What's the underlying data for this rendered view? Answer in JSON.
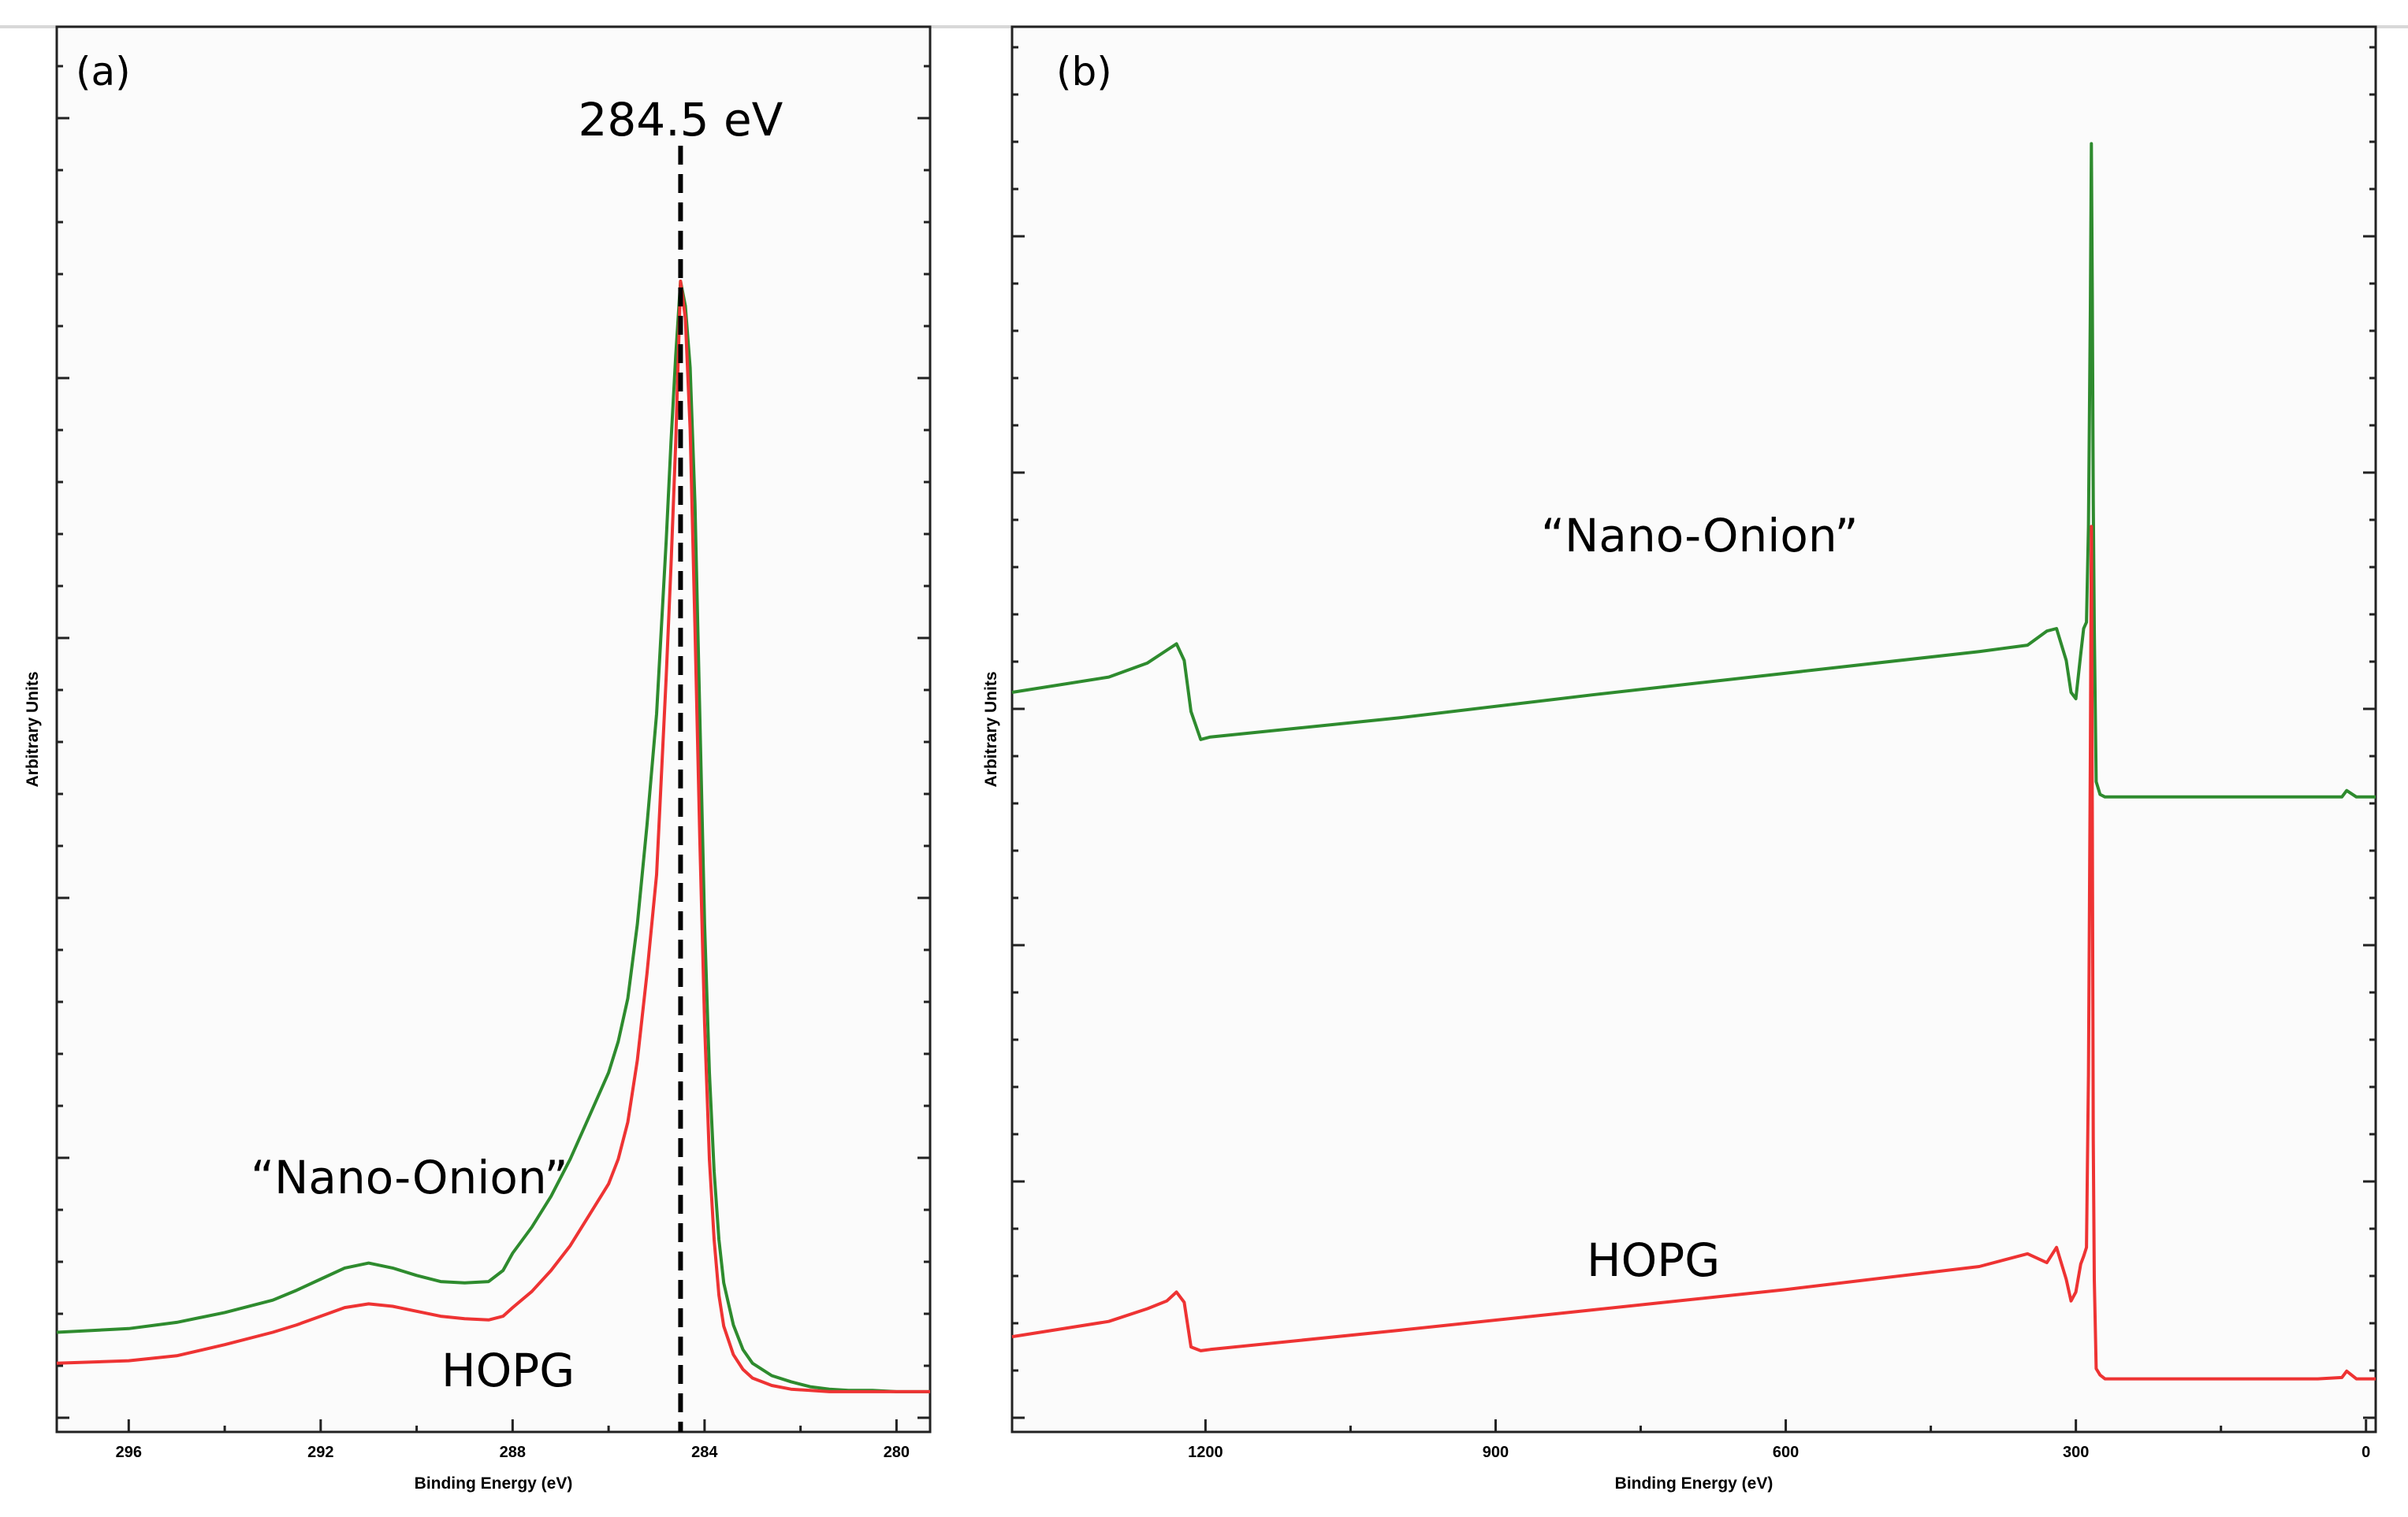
{
  "colors": {
    "nano_onion": "#2e8b2e",
    "hopg": "#ee3333",
    "plot_background": "#fbfbfb",
    "frame": "#222222"
  },
  "chart_data": [
    {
      "type": "line",
      "panel_label": "(a)",
      "xlabel": "Binding Energy (eV)",
      "ylabel": "Arbitrary Units",
      "xlim": [
        297.5,
        279.3
      ],
      "x_reversed": true,
      "ylim": [
        0,
        100
      ],
      "y_ticks_labeled": false,
      "xticks": [
        296,
        292,
        288,
        284,
        280
      ],
      "xtick_labels": [
        "296",
        "292",
        "288",
        "284",
        "280"
      ],
      "reference_line": {
        "x": 284.5,
        "label": "284.5 eV",
        "style": "dashed"
      },
      "series": [
        {
          "name": "“Nano-Onion”",
          "color": "#2e8b2e",
          "x": [
            297.5,
            296,
            295,
            294,
            293,
            292.5,
            292,
            291.5,
            291.0,
            290.5,
            290,
            289.5,
            289,
            288.5,
            288.2,
            288,
            287.6,
            287.2,
            286.8,
            286.4,
            286,
            285.8,
            285.6,
            285.4,
            285.2,
            285.0,
            284.9,
            284.8,
            284.7,
            284.6,
            284.5,
            284.4,
            284.3,
            284.2,
            284.1,
            284.0,
            283.9,
            283.8,
            283.7,
            283.6,
            283.4,
            283.2,
            283.0,
            282.6,
            282.2,
            281.8,
            281.4,
            281.0,
            280.5,
            280.0,
            279.3
          ],
          "y": [
            5.0,
            5.3,
            5.8,
            6.6,
            7.6,
            8.4,
            9.3,
            10.2,
            10.6,
            10.2,
            9.6,
            9.1,
            9.0,
            9.1,
            10.0,
            11.4,
            13.5,
            16.0,
            19.0,
            22.5,
            26.0,
            28.5,
            32.0,
            38.0,
            46.0,
            55.0,
            62.0,
            69.0,
            77.0,
            84.0,
            90.0,
            88.0,
            83.0,
            72.0,
            55.0,
            38.0,
            26.0,
            18.0,
            12.5,
            9.0,
            5.6,
            3.6,
            2.5,
            1.5,
            1.0,
            0.6,
            0.4,
            0.3,
            0.3,
            0.2,
            0.2
          ]
        },
        {
          "name": "HOPG",
          "color": "#ee3333",
          "x": [
            297.5,
            296,
            295,
            294,
            293,
            292.5,
            292,
            291.5,
            291.0,
            290.5,
            290,
            289.5,
            289,
            288.5,
            288.2,
            288,
            287.6,
            287.2,
            286.8,
            286.4,
            286,
            285.8,
            285.6,
            285.4,
            285.2,
            285.0,
            284.9,
            284.8,
            284.7,
            284.6,
            284.5,
            284.4,
            284.3,
            284.2,
            284.1,
            284.0,
            283.9,
            283.8,
            283.7,
            283.6,
            283.4,
            283.2,
            283.0,
            282.6,
            282.2,
            281.8,
            281.4,
            281.0,
            280.5,
            280.0,
            279.3
          ],
          "y": [
            2.5,
            2.7,
            3.1,
            4.0,
            5.0,
            5.6,
            6.3,
            7.0,
            7.3,
            7.1,
            6.7,
            6.3,
            6.1,
            6.0,
            6.3,
            7.0,
            8.3,
            10.0,
            12.0,
            14.5,
            17.0,
            19.0,
            22.0,
            27.0,
            34.0,
            42.0,
            50.0,
            58.0,
            67.0,
            77.0,
            90.0,
            87.0,
            78.0,
            62.0,
            45.0,
            30.0,
            19.0,
            12.5,
            8.0,
            5.5,
            3.2,
            2.0,
            1.3,
            0.7,
            0.4,
            0.3,
            0.2,
            0.2,
            0.2,
            0.2,
            0.2
          ]
        }
      ],
      "annotations": [
        {
          "text": "“Nano-Onion”",
          "near_series": "“Nano-Onion”"
        },
        {
          "text": "HOPG",
          "near_series": "HOPG"
        }
      ]
    },
    {
      "type": "line",
      "panel_label": "(b)",
      "xlabel": "Binding Energy (eV)",
      "ylabel": "Arbitrary Units",
      "xlim": [
        1400,
        -10
      ],
      "x_reversed": true,
      "ylim": [
        0,
        100
      ],
      "y_ticks_labeled": false,
      "xticks": [
        1200,
        900,
        600,
        300,
        0
      ],
      "xtick_labels": [
        "1200",
        "900",
        "600",
        "300",
        "0"
      ],
      "series": [
        {
          "name": "“Nano-Onion”",
          "color": "#2e8b2e",
          "x": [
            1400,
            1300,
            1260,
            1240,
            1230,
            1222,
            1215,
            1205,
            1195,
            1000,
            800,
            600,
            400,
            350,
            330,
            320,
            310,
            305,
            300,
            295,
            292,
            289,
            287,
            285,
            284,
            283,
            282,
            281,
            279,
            275,
            270,
            250,
            200,
            100,
            50,
            25,
            20,
            10,
            0,
            -10
          ],
          "y": [
            55.0,
            56.2,
            57.3,
            58.3,
            58.8,
            57.5,
            53.5,
            51.3,
            51.5,
            53.0,
            54.8,
            56.5,
            58.2,
            58.7,
            59.8,
            60.0,
            57.5,
            55.0,
            54.5,
            58.0,
            60.0,
            60.5,
            68.0,
            85.0,
            98.0,
            86.0,
            70.0,
            60.0,
            48.0,
            47.0,
            46.8,
            46.8,
            46.8,
            46.8,
            46.8,
            46.8,
            47.3,
            46.8,
            46.8,
            46.8
          ]
        },
        {
          "name": "HOPG",
          "color": "#ee3333",
          "x": [
            1400,
            1300,
            1260,
            1240,
            1230,
            1222,
            1215,
            1205,
            1195,
            1000,
            800,
            600,
            400,
            350,
            330,
            320,
            310,
            305,
            300,
            295,
            292,
            289,
            287,
            285,
            284,
            283,
            282,
            281,
            279,
            275,
            270,
            250,
            200,
            100,
            50,
            25,
            20,
            10,
            0,
            -10
          ],
          "y": [
            4.5,
            5.7,
            6.7,
            7.3,
            8.0,
            7.2,
            3.7,
            3.4,
            3.5,
            5.0,
            6.6,
            8.2,
            10.0,
            11.0,
            10.3,
            11.5,
            9.0,
            7.3,
            8.0,
            10.2,
            10.8,
            11.5,
            25.0,
            50.0,
            68.0,
            45.0,
            20.0,
            9.0,
            2.0,
            1.5,
            1.2,
            1.2,
            1.2,
            1.2,
            1.2,
            1.3,
            1.8,
            1.2,
            1.2,
            1.2
          ]
        }
      ],
      "annotations": [
        {
          "text": "“Nano-Onion”",
          "near_series": "“Nano-Onion”"
        },
        {
          "text": "HOPG",
          "near_series": "HOPG"
        }
      ]
    }
  ]
}
